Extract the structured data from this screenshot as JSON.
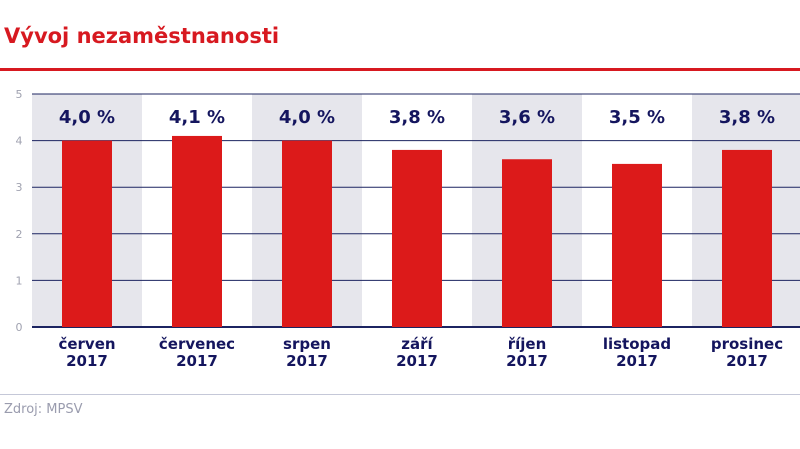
{
  "title": "Vývoj nezaměstnanosti",
  "source": "Zdroj: MPSV",
  "colors": {
    "bar": "#dc1a1a",
    "title": "#d71920",
    "label": "#14155e",
    "band": "#e6e6ec",
    "grid": "#1c2461"
  },
  "chart_data": {
    "type": "bar",
    "categories": [
      [
        "červen",
        "2017"
      ],
      [
        "červenec",
        "2017"
      ],
      [
        "srpen",
        "2017"
      ],
      [
        "září",
        "2017"
      ],
      [
        "říjen",
        "2017"
      ],
      [
        "listopad",
        "2017"
      ],
      [
        "prosinec",
        "2017"
      ]
    ],
    "values": [
      4.0,
      4.1,
      4.0,
      3.8,
      3.6,
      3.5,
      3.8
    ],
    "data_labels": [
      "4,0 %",
      "4,1 %",
      "4,0 %",
      "3,8 %",
      "3,6 %",
      "3,5 %",
      "3,8 %"
    ],
    "yticks": [
      "0",
      "1",
      "2",
      "3",
      "4",
      "5"
    ],
    "ylim": [
      0,
      5
    ],
    "grid": true
  }
}
